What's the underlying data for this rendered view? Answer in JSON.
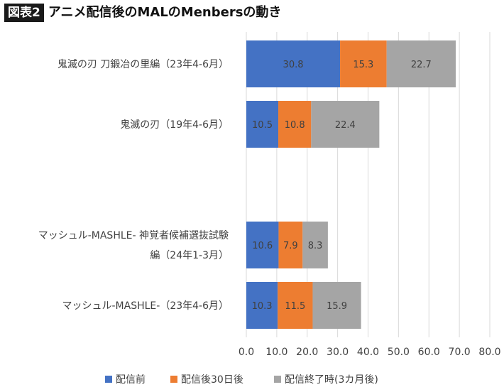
{
  "header": {
    "badge": "図表2",
    "title": "アニメ配信後のMALのMenbersの動き"
  },
  "colors": {
    "series": [
      "#4472C4",
      "#ED7D31",
      "#A5A5A5"
    ],
    "grid": "#d9d9d9",
    "text": "#404040"
  },
  "chart_data": {
    "type": "bar",
    "orientation": "horizontal",
    "stacked": true,
    "categories": [
      [
        "鬼滅の刃 刀鍛冶の里編（23年4-6月）"
      ],
      [
        "鬼滅の刃（19年4-6月）"
      ],
      [],
      [
        "マッシュル-MASHLE- 神覚者候補選抜試験",
        "編（24年1-3月）"
      ],
      [
        "マッシュル-MASHLE-（23年4-6月）"
      ]
    ],
    "series": [
      {
        "name": "配信前",
        "values": [
          30.8,
          10.5,
          null,
          10.6,
          10.3
        ]
      },
      {
        "name": "配信後30日後",
        "values": [
          15.3,
          10.8,
          null,
          7.9,
          11.5
        ]
      },
      {
        "name": "配信終了時(3カ月後)",
        "values": [
          22.7,
          22.4,
          null,
          8.3,
          15.9
        ]
      }
    ],
    "xlim": [
      0,
      80
    ],
    "xticks": [
      "0.0",
      "10.0",
      "20.0",
      "30.0",
      "40.0",
      "50.0",
      "60.0",
      "70.0",
      "80.0"
    ],
    "grid": true,
    "legend_position": "bottom"
  }
}
